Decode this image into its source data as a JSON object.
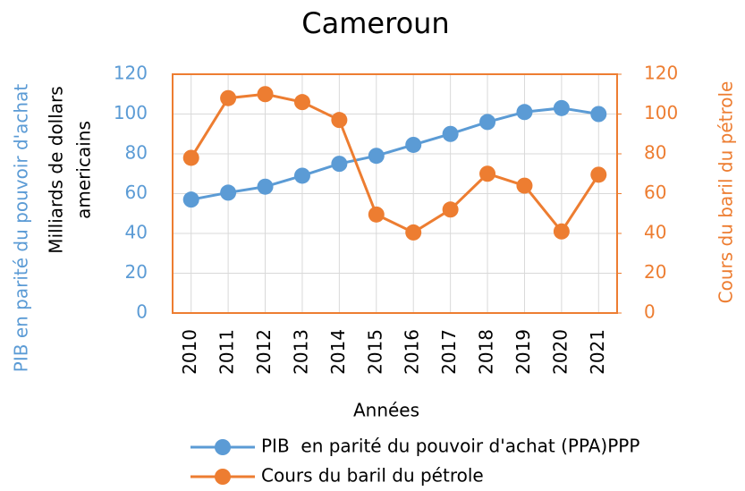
{
  "chart_data": {
    "type": "line",
    "title": "Cameroun",
    "x_label": "Années",
    "y_label": "PIB en parité du pouvoir d'achat",
    "y_unit_label": [
      "Milliards  de dollars",
      "americains"
    ],
    "y2_label": "Cours du baril du pétrole",
    "categories": [
      "2010",
      "2011",
      "2012",
      "2013",
      "2014",
      "2015",
      "2016",
      "2017",
      "2018",
      "2019",
      "2020",
      "2021"
    ],
    "series": [
      {
        "name": "PIB  en parité du pouvoir d'achat (PPA)PPP",
        "color": "#5b9bd5",
        "values": [
          57,
          60.5,
          63.5,
          69,
          75,
          79,
          84.5,
          90,
          96,
          101,
          103,
          100
        ]
      },
      {
        "name": "Cours du baril du pétrole",
        "color": "#ed7d31",
        "axis": "y2",
        "values": [
          78,
          108,
          110,
          106,
          97,
          49.5,
          40.5,
          52,
          70,
          64,
          41,
          69.5
        ]
      }
    ],
    "ylim": [
      0,
      120
    ],
    "yticks": [
      0,
      20,
      40,
      60,
      80,
      100,
      120
    ],
    "y2lim": [
      0,
      120
    ],
    "y2ticks": [
      0,
      20,
      40,
      60,
      80,
      100,
      120
    ],
    "grid": true,
    "legend": "bottom"
  }
}
